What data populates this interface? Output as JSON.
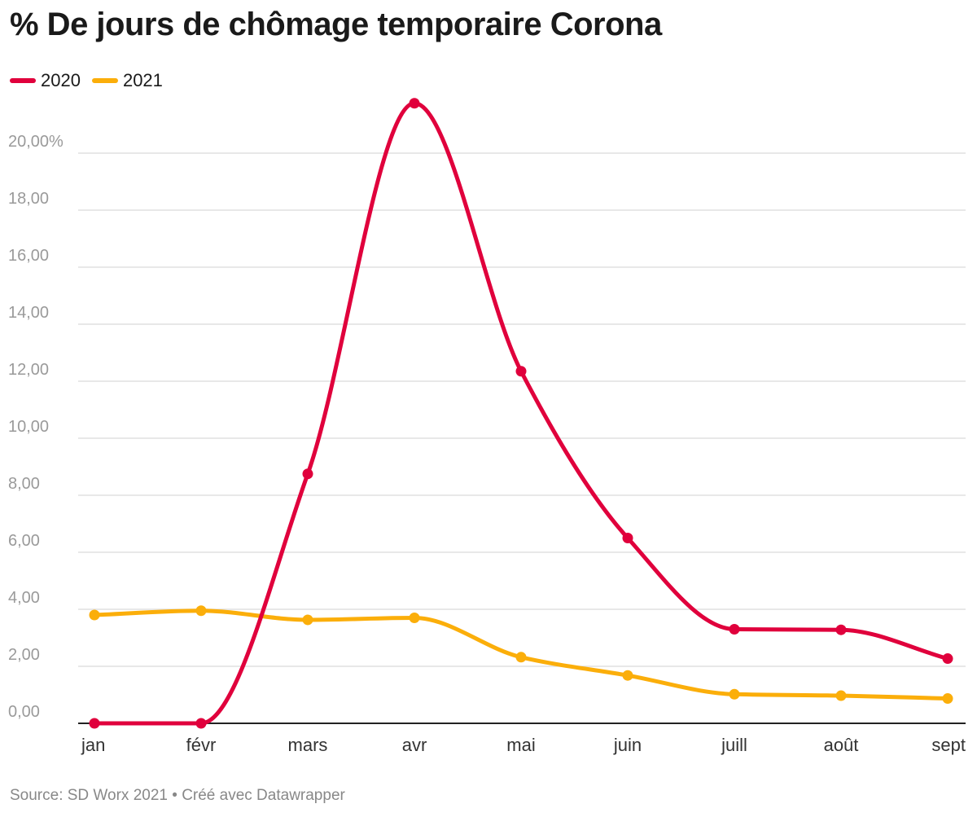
{
  "title": "% De jours de chômage temporaire Corona",
  "footer": {
    "source": "Source: SD Worx 2021",
    "separator": "•",
    "credit": "Créé avec Datawrapper"
  },
  "colors": {
    "2020": "#e0003c",
    "2021": "#fbae0a",
    "grid": "#e1e1e1",
    "axis": "#222222"
  },
  "chart_data": {
    "type": "line",
    "categories": [
      "jan",
      "févr",
      "mars",
      "avr",
      "mai",
      "juin",
      "juill",
      "août",
      "sept"
    ],
    "y_ticks": [
      {
        "value": 0,
        "label": "0,00"
      },
      {
        "value": 2,
        "label": "2,00"
      },
      {
        "value": 4,
        "label": "4,00"
      },
      {
        "value": 6,
        "label": "6,00"
      },
      {
        "value": 8,
        "label": "8,00"
      },
      {
        "value": 10,
        "label": "10,00"
      },
      {
        "value": 12,
        "label": "12,00"
      },
      {
        "value": 14,
        "label": "14,00"
      },
      {
        "value": 16,
        "label": "16,00"
      },
      {
        "value": 18,
        "label": "18,00"
      },
      {
        "value": 20,
        "label": "20,00%"
      }
    ],
    "ylim": [
      0,
      22
    ],
    "grid": true,
    "legend": "top-left",
    "series": [
      {
        "name": "2020",
        "color": "#e0003c",
        "values": [
          0.0,
          0.0,
          8.75,
          21.75,
          12.35,
          6.5,
          3.3,
          3.28,
          2.27
        ]
      },
      {
        "name": "2021",
        "color": "#fbae0a",
        "values": [
          3.8,
          3.95,
          3.63,
          3.7,
          2.32,
          1.68,
          1.02,
          0.97,
          0.87
        ]
      }
    ]
  }
}
